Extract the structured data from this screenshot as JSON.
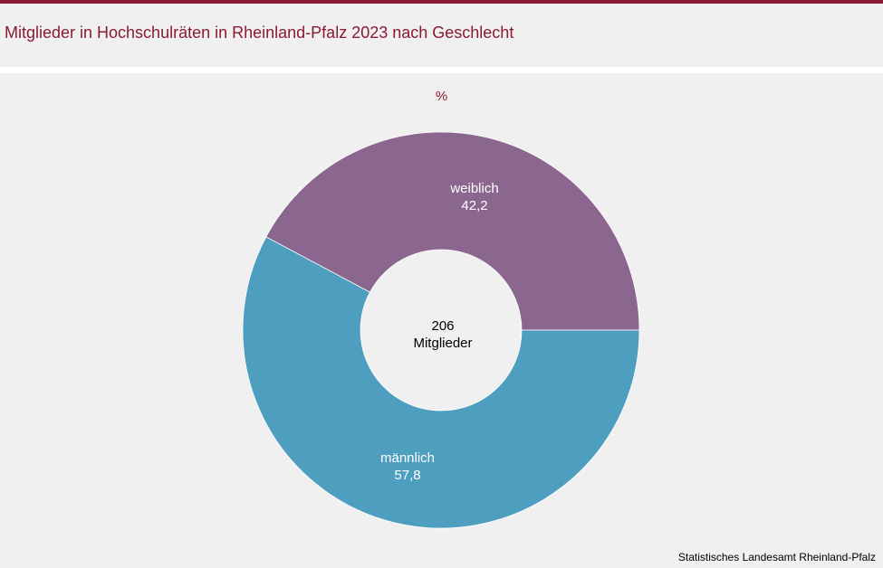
{
  "header": {
    "title": "Mitglieder in Hochschulräten in Rheinland-Pfalz 2023 nach Geschlecht"
  },
  "chart": {
    "unit": "%",
    "center": {
      "value": "206",
      "label": "Mitglieder"
    },
    "source": "Statistisches Landesamt  Rheinland-Pfalz"
  },
  "colors": {
    "brand": "#8a1a33",
    "weiblich": "#8b668f",
    "maennlich": "#4e9ec0",
    "background": "#eff0ef"
  },
  "chart_data": {
    "type": "pie",
    "title": "Mitglieder in Hochschulräten in Rheinland-Pfalz 2023 nach Geschlecht",
    "unit": "%",
    "categories": [
      "weiblich",
      "männlich"
    ],
    "values": [
      42.2,
      57.8
    ],
    "value_labels": [
      "42,2",
      "57,8"
    ],
    "donut": true,
    "center_label": "206 Mitglieder"
  }
}
